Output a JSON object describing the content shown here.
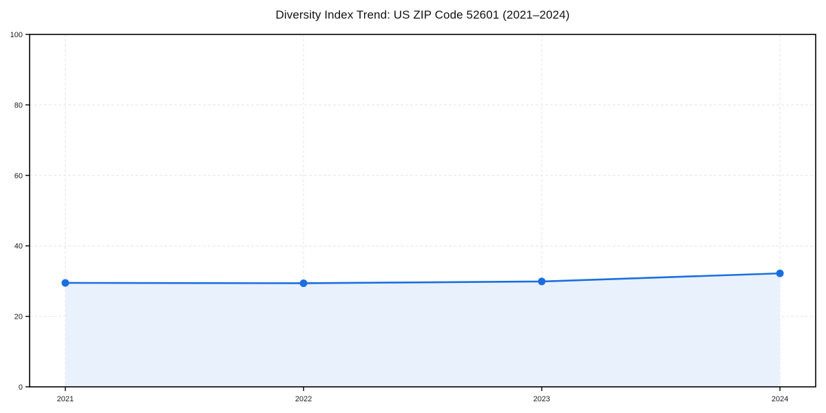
{
  "chart": {
    "title": "Diversity Index Trend: US ZIP Code 52601 (2021–2024)"
  },
  "chart_data": {
    "type": "line",
    "title": "Diversity Index Trend: US ZIP Code 52601 (2021–2024)",
    "categories": [
      "2021",
      "2022",
      "2023",
      "2024"
    ],
    "x": [
      2021,
      2022,
      2023,
      2024
    ],
    "series": [
      {
        "name": "Diversity Index",
        "values": [
          29.5,
          29.4,
          29.9,
          32.2
        ]
      }
    ],
    "xlabel": "",
    "ylabel": "",
    "ylim": [
      0,
      100
    ],
    "yticks": [
      0,
      20,
      40,
      60,
      80,
      100
    ],
    "grid": "dashed",
    "legend": "none",
    "marker": "circle",
    "colors": {
      "line": "#1a6fe0",
      "marker": "#1a6fe0",
      "area_fill": "#e9f1fd",
      "grid": "#e4e4e4",
      "axis": "#000000",
      "tick_text": "#1a1a1a",
      "background": "#ffffff"
    }
  }
}
